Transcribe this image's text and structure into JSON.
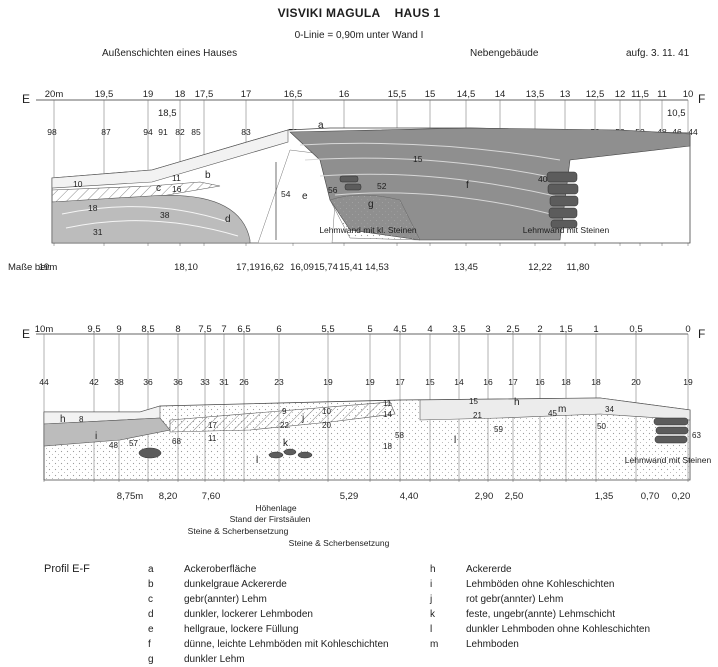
{
  "header": {
    "title": "VISVIKI MAGULA    HAUS 1",
    "subtitle": "0-Linie = 0,90m unter Wand I",
    "left_caption": "Außenschichten eines Hauses",
    "right_caption": "Nebengebäude",
    "date": "aufg. 3. 11. 41"
  },
  "profile1": {
    "end_left": "E",
    "end_right": "F",
    "scale_labels": [
      "20m",
      "19,5",
      "19",
      "18",
      "17,5",
      "17",
      "16,5",
      "16",
      "15,5",
      "15",
      "14,5",
      "14",
      "13,5",
      "13",
      "12,5",
      "12",
      "11,5",
      "11",
      "10"
    ],
    "extra_scale": [
      "18,5",
      "10,5"
    ],
    "depths": [
      "98",
      "87",
      "94",
      "91",
      "82",
      "85",
      "83",
      "79",
      "75",
      "69",
      "69",
      "68",
      "67",
      "63",
      "61",
      "58",
      "53",
      "52",
      "48",
      "46",
      "44"
    ],
    "layer_letters": [
      "a",
      "b",
      "c",
      "d",
      "e",
      "f",
      "g"
    ],
    "inner_numbers": [
      "10",
      "11",
      "16",
      "18",
      "38",
      "31",
      "54",
      "56",
      "52",
      "15",
      "40"
    ],
    "notes": [
      "Lehmwand mit kl. Steinen",
      "Lehmwand mit Steinen"
    ],
    "measure_title": "Maße bei:",
    "measures": [
      "19m",
      "18,10",
      "17,19",
      "16,62",
      "16,09",
      "15,74",
      "15,41",
      "14,53",
      "13,45",
      "12,22",
      "11,80"
    ]
  },
  "profile2": {
    "end_left": "E",
    "end_right": "F",
    "scale_labels": [
      "10m",
      "9,5",
      "9",
      "8,5",
      "8",
      "7,5",
      "7",
      "6,5",
      "6",
      "5,5",
      "5",
      "4,5",
      "4",
      "3,5",
      "3",
      "2,5",
      "2",
      "1,5",
      "1",
      "0,5",
      "0"
    ],
    "depths": [
      "44",
      "42",
      "38",
      "36",
      "36",
      "33",
      "31",
      "26",
      "23",
      "19",
      "19",
      "17",
      "15",
      "14",
      "16",
      "17",
      "16",
      "18",
      "18",
      "20",
      "19"
    ],
    "layer_letters": [
      "h",
      "i",
      "j",
      "k",
      "l",
      "l",
      "m",
      "h"
    ],
    "inner_numbers": [
      "8",
      "48",
      "57",
      "68",
      "17",
      "11",
      "9",
      "10",
      "22",
      "20",
      "11",
      "14",
      "58",
      "18",
      "15",
      "21",
      "59",
      "45",
      "34",
      "50",
      "63"
    ],
    "note": "Lehmwand mit Steinen",
    "measures": [
      "8,75m",
      "8,20",
      "7,60",
      "5,29",
      "4,40",
      "2,90",
      "2,50",
      "1,35",
      "0,70",
      "0,20"
    ],
    "annotations": [
      "Höhenlage",
      "Stand der Firstsäulen",
      "Steine & Scherbensetzung",
      "Steine & Scherbensetzung"
    ]
  },
  "legend": {
    "title": "Profil E-F",
    "left": [
      {
        "key": "a",
        "text": "Ackeroberfläche"
      },
      {
        "key": "b",
        "text": "dunkelgraue Ackererde"
      },
      {
        "key": "c",
        "text": "gebr(annter) Lehm"
      },
      {
        "key": "d",
        "text": "dunkler, lockerer Lehmboden"
      },
      {
        "key": "e",
        "text": "hellgraue, lockere Füllung"
      },
      {
        "key": "f",
        "text": "dünne, leichte Lehmböden mit Kohleschichten"
      },
      {
        "key": "g",
        "text": "dunkler Lehm"
      }
    ],
    "right": [
      {
        "key": "h",
        "text": "Ackererde"
      },
      {
        "key": "i",
        "text": "Lehmböden ohne Kohleschichten"
      },
      {
        "key": "j",
        "text": "rot gebr(annter) Lehm"
      },
      {
        "key": "k",
        "text": "feste, ungebr(annte) Lehmschicht"
      },
      {
        "key": "l",
        "text": "dunkler Lehmboden ohne Kohleschichten"
      },
      {
        "key": "m",
        "text": "Lehmboden"
      }
    ]
  }
}
